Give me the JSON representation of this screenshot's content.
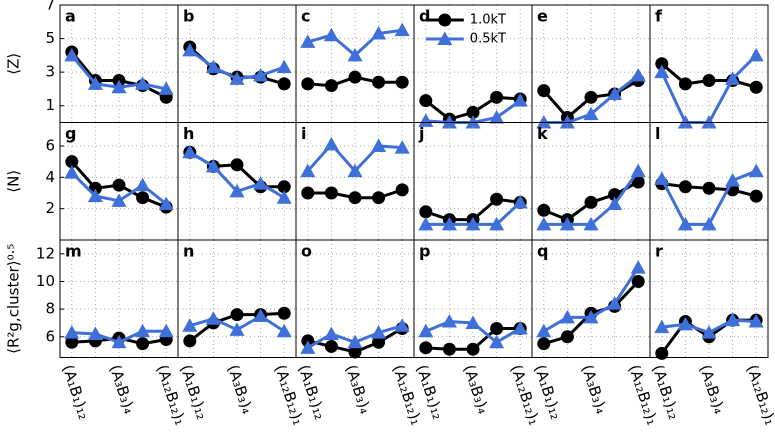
{
  "chart_data": [
    {
      "type": "line",
      "label": "a",
      "ylabel": "⟨Z⟩",
      "ylim": [
        0,
        7
      ],
      "yticks": [
        1,
        3,
        5,
        7
      ],
      "grid": true,
      "series": [
        {
          "color": "#000000",
          "marker": "circle",
          "values": [
            4.2,
            2.5,
            2.5,
            2.2,
            1.5
          ]
        },
        {
          "color": "#3f6fd8",
          "marker": "triangle",
          "values": [
            4.0,
            2.3,
            2.1,
            2.3,
            2.0
          ]
        }
      ]
    },
    {
      "type": "line",
      "label": "b",
      "series": [
        {
          "color": "#000000",
          "marker": "circle",
          "values": [
            4.5,
            3.2,
            2.7,
            2.7,
            2.3
          ]
        },
        {
          "color": "#3f6fd8",
          "marker": "triangle",
          "values": [
            4.3,
            3.3,
            2.6,
            2.8,
            3.3
          ]
        }
      ]
    },
    {
      "type": "line",
      "label": "c",
      "series": [
        {
          "color": "#000000",
          "marker": "circle",
          "values": [
            2.3,
            2.2,
            2.7,
            2.4,
            2.4
          ]
        },
        {
          "color": "#3f6fd8",
          "marker": "triangle",
          "values": [
            4.8,
            5.2,
            4.0,
            5.3,
            5.5
          ]
        }
      ]
    },
    {
      "type": "line",
      "label": "d",
      "legend": "upper right",
      "series": [
        {
          "name": "1.0kT",
          "color": "#000000",
          "marker": "circle",
          "values": [
            1.3,
            0.2,
            0.6,
            1.5,
            1.4
          ]
        },
        {
          "name": "0.5kT",
          "color": "#3f6fd8",
          "marker": "triangle",
          "values": [
            0.1,
            0.0,
            0.0,
            0.3,
            1.3
          ]
        }
      ]
    },
    {
      "type": "line",
      "label": "e",
      "series": [
        {
          "color": "#000000",
          "marker": "circle",
          "values": [
            1.9,
            0.3,
            1.5,
            1.7,
            2.5
          ]
        },
        {
          "color": "#3f6fd8",
          "marker": "triangle",
          "values": [
            0.0,
            0.0,
            0.5,
            1.7,
            2.8
          ]
        }
      ]
    },
    {
      "type": "line",
      "label": "f",
      "series": [
        {
          "color": "#000000",
          "marker": "circle",
          "values": [
            3.5,
            2.3,
            2.5,
            2.5,
            2.1
          ]
        },
        {
          "color": "#3f6fd8",
          "marker": "triangle",
          "values": [
            3.0,
            0.0,
            0.0,
            2.6,
            4.0
          ]
        }
      ]
    },
    {
      "type": "line",
      "label": "g",
      "ylabel": "⟨N⟩",
      "ylim": [
        0,
        7.5
      ],
      "yticks": [
        2,
        4,
        6
      ],
      "grid": true,
      "series": [
        {
          "color": "#000000",
          "marker": "circle",
          "values": [
            5.0,
            3.3,
            3.5,
            2.7,
            2.1
          ]
        },
        {
          "color": "#3f6fd8",
          "marker": "triangle",
          "values": [
            4.3,
            2.8,
            2.5,
            3.5,
            2.3
          ]
        }
      ]
    },
    {
      "type": "line",
      "label": "h",
      "series": [
        {
          "color": "#000000",
          "marker": "circle",
          "values": [
            5.6,
            4.7,
            4.8,
            3.4,
            3.4
          ]
        },
        {
          "color": "#3f6fd8",
          "marker": "triangle",
          "values": [
            5.6,
            4.7,
            3.1,
            3.6,
            2.7
          ]
        }
      ]
    },
    {
      "type": "line",
      "label": "i",
      "series": [
        {
          "color": "#000000",
          "marker": "circle",
          "values": [
            3.0,
            3.0,
            2.7,
            2.7,
            3.2
          ]
        },
        {
          "color": "#3f6fd8",
          "marker": "triangle",
          "values": [
            4.4,
            6.1,
            4.4,
            6.0,
            5.9
          ]
        }
      ]
    },
    {
      "type": "line",
      "label": "j",
      "series": [
        {
          "color": "#000000",
          "marker": "circle",
          "values": [
            1.8,
            1.3,
            1.3,
            2.6,
            2.4
          ]
        },
        {
          "color": "#3f6fd8",
          "marker": "triangle",
          "values": [
            1.0,
            1.0,
            1.0,
            1.0,
            2.4
          ]
        }
      ]
    },
    {
      "type": "line",
      "label": "k",
      "series": [
        {
          "color": "#000000",
          "marker": "circle",
          "values": [
            1.9,
            1.3,
            2.4,
            2.9,
            3.7
          ]
        },
        {
          "color": "#3f6fd8",
          "marker": "triangle",
          "values": [
            1.0,
            1.0,
            1.0,
            2.3,
            4.4
          ]
        }
      ]
    },
    {
      "type": "line",
      "label": "l",
      "series": [
        {
          "color": "#000000",
          "marker": "circle",
          "values": [
            3.6,
            3.4,
            3.3,
            3.2,
            2.8
          ]
        },
        {
          "color": "#3f6fd8",
          "marker": "triangle",
          "values": [
            3.9,
            1.0,
            1.0,
            3.8,
            4.4
          ]
        }
      ]
    },
    {
      "type": "line",
      "label": "m",
      "ylabel": "⟨R²g,cluster⟩⁰·⁵",
      "ylim": [
        4.5,
        13
      ],
      "yticks": [
        6,
        8,
        10,
        12
      ],
      "grid": true,
      "categories": [
        "(A₁B₁)₁₂",
        null,
        "(A₃B₃)₄",
        null,
        "(A₁₂B₁₂)₁"
      ],
      "series": [
        {
          "color": "#000000",
          "marker": "circle",
          "values": [
            5.6,
            5.7,
            5.9,
            5.5,
            5.8
          ]
        },
        {
          "color": "#3f6fd8",
          "marker": "triangle",
          "values": [
            6.3,
            6.2,
            5.6,
            6.4,
            6.4
          ]
        }
      ]
    },
    {
      "type": "line",
      "label": "n",
      "categories": [
        "(A₁B₁)₁₂",
        null,
        "(A₃B₃)₄",
        null,
        "(A₁₂B₁₂)₁"
      ],
      "series": [
        {
          "color": "#000000",
          "marker": "circle",
          "values": [
            5.7,
            7.0,
            7.6,
            7.6,
            7.7
          ]
        },
        {
          "color": "#3f6fd8",
          "marker": "triangle",
          "values": [
            6.8,
            7.3,
            6.5,
            7.5,
            6.4
          ]
        }
      ]
    },
    {
      "type": "line",
      "label": "o",
      "categories": [
        "(A₁B₁)₁₂",
        null,
        "(A₃B₃)₄",
        null,
        "(A₁₂B₁₂)₁"
      ],
      "series": [
        {
          "color": "#000000",
          "marker": "circle",
          "values": [
            5.7,
            5.3,
            4.9,
            5.6,
            6.6
          ]
        },
        {
          "color": "#3f6fd8",
          "marker": "triangle",
          "values": [
            5.2,
            6.2,
            5.6,
            6.3,
            6.8
          ]
        }
      ]
    },
    {
      "type": "line",
      "label": "p",
      "categories": [
        "(A₁B₁)₁₂",
        null,
        "(A₃B₃)₄",
        null,
        "(A₁₂B₁₂)₁"
      ],
      "series": [
        {
          "color": "#000000",
          "marker": "circle",
          "values": [
            5.2,
            5.1,
            5.1,
            6.6,
            6.6
          ]
        },
        {
          "color": "#3f6fd8",
          "marker": "triangle",
          "values": [
            6.4,
            7.1,
            7.0,
            5.6,
            6.6
          ]
        }
      ]
    },
    {
      "type": "line",
      "label": "q",
      "categories": [
        "(A₁B₁)₁₂",
        null,
        "(A₃B₃)₄",
        null,
        "(A₁₂B₁₂)₁"
      ],
      "series": [
        {
          "color": "#000000",
          "marker": "circle",
          "values": [
            5.5,
            6.0,
            7.7,
            8.2,
            10.0
          ]
        },
        {
          "color": "#3f6fd8",
          "marker": "triangle",
          "values": [
            6.4,
            7.4,
            7.4,
            8.4,
            11.0
          ]
        }
      ]
    },
    {
      "type": "line",
      "label": "r",
      "categories": [
        "(A₁B₁)₁₂",
        null,
        "(A₃B₃)₄",
        null,
        "(A₁₂B₁₂)₁"
      ],
      "series": [
        {
          "color": "#000000",
          "marker": "circle",
          "values": [
            4.8,
            7.1,
            6.0,
            7.2,
            7.2
          ]
        },
        {
          "color": "#3f6fd8",
          "marker": "triangle",
          "values": [
            6.7,
            6.9,
            6.3,
            7.2,
            7.1
          ]
        }
      ]
    }
  ]
}
